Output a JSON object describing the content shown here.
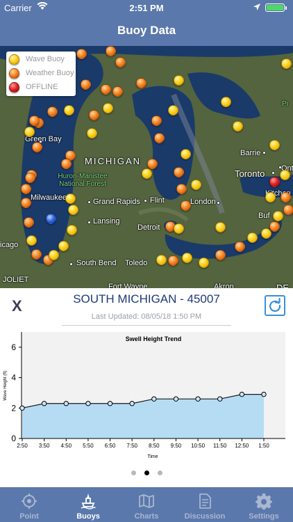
{
  "status_bar": {
    "carrier": "Carrier",
    "time": "2:51 PM"
  },
  "nav": {
    "title": "Buoy Data"
  },
  "map": {
    "labels": {
      "green_bay": "Green Bay",
      "michigan": "MICHIGAN",
      "park": "Huron-Manistee\nNational Forest",
      "milwaukee": "Milwaukee",
      "grand_rapids": "Grand Rapids",
      "flint": "Flint",
      "london": "London",
      "lansing": "Lansing",
      "detroit": "Detroit",
      "chicago": "icago",
      "joliet": "JOLIET",
      "south_bend": "South Bend",
      "toledo": "Toledo",
      "fort_wayne": "Fort Wayne",
      "akron": "Akron",
      "barrie": "Barrie",
      "toronto": "Toronto",
      "kitchener": "Kitchen",
      "buffalo": "Buf",
      "pr": "Pr",
      "ont": "Ont",
      "de": "DE"
    },
    "legend": [
      {
        "label": "Wave Buoy",
        "type": "wave"
      },
      {
        "label": "Weather Buoy",
        "type": "weather"
      },
      {
        "label": "OFFLINE",
        "type": "offline"
      }
    ]
  },
  "buoy": {
    "name": "SOUTH MICHIGAN - 45007",
    "updated": "Last Updated: 08/05/18 1:50 PM"
  },
  "chart_data": {
    "type": "area",
    "title": "Swell Height Trend",
    "xlabel": "Time",
    "ylabel": "Wave Height (ft)",
    "x": [
      "2:50",
      "3:50",
      "4:50",
      "5:50",
      "6:50",
      "7:50",
      "8:50",
      "9:50",
      "10:50",
      "11:50",
      "12:50",
      "1:50"
    ],
    "values": [
      2.0,
      2.3,
      2.3,
      2.3,
      2.3,
      2.3,
      2.6,
      2.6,
      2.6,
      2.6,
      2.9,
      2.9
    ],
    "ylim": [
      0,
      7
    ],
    "yticks": [
      0,
      2,
      4,
      6
    ],
    "fill_color": "#b6dcf4",
    "line_color": "#1a1a1a",
    "grid": false
  },
  "pagination": {
    "count": 3,
    "active": 1
  },
  "tabs": [
    {
      "label": "Point",
      "icon": "crosshair-icon"
    },
    {
      "label": "Buoys",
      "icon": "buoy-icon"
    },
    {
      "label": "Charts",
      "icon": "map-icon"
    },
    {
      "label": "Discussion",
      "icon": "document-icon"
    },
    {
      "label": "Settings",
      "icon": "gear-icon"
    }
  ],
  "colors": {
    "header": "#5a78ab",
    "title_text": "#1e3a78",
    "wave_buoy": "#ffd11a",
    "weather_buoy": "#f6801c",
    "offline_buoy": "#e02020",
    "selected_buoy": "#2b64e0"
  }
}
